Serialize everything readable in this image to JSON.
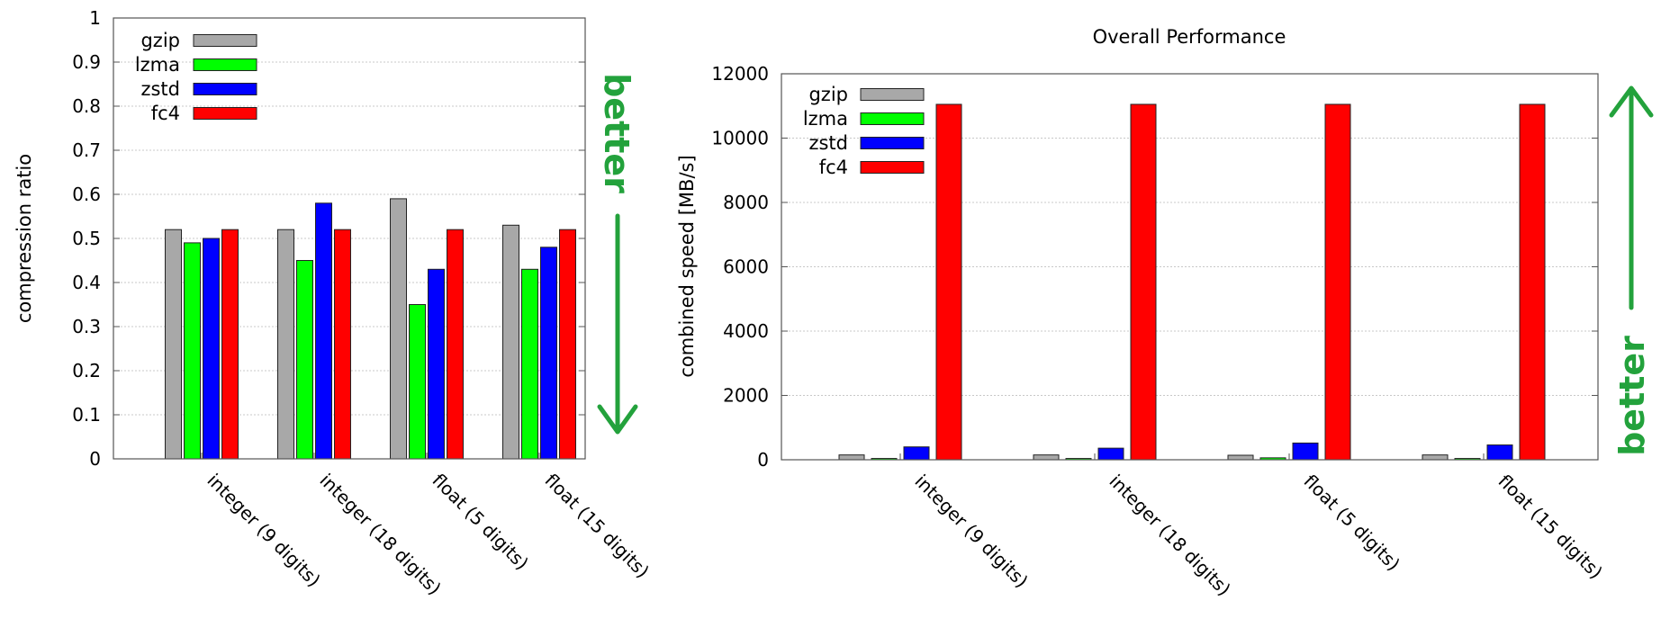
{
  "better_label": "better",
  "accent_color": "#23a23c",
  "chart_data": [
    {
      "type": "bar",
      "title": "",
      "xlabel": "",
      "ylabel": "compression ratio",
      "ylim": [
        0,
        1
      ],
      "yticks": [
        "0",
        "0.1",
        "0.2",
        "0.3",
        "0.4",
        "0.5",
        "0.6",
        "0.7",
        "0.8",
        "0.9",
        "1"
      ],
      "grid": true,
      "legend_position": "top-left",
      "better_direction": "down",
      "categories": [
        "integer (9 digits)",
        "integer (18 digits)",
        "float (5 digits)",
        "float (15 digits)"
      ],
      "series": [
        {
          "name": "gzip",
          "color": "#a8a8a8",
          "values": [
            0.52,
            0.52,
            0.59,
            0.53
          ]
        },
        {
          "name": "lzma",
          "color": "#00ff00",
          "values": [
            0.49,
            0.45,
            0.35,
            0.43
          ]
        },
        {
          "name": "zstd",
          "color": "#0000ff",
          "values": [
            0.5,
            0.58,
            0.43,
            0.48
          ]
        },
        {
          "name": "fc4",
          "color": "#ff0000",
          "values": [
            0.52,
            0.52,
            0.52,
            0.52
          ]
        }
      ]
    },
    {
      "type": "bar",
      "title": "Overall Performance",
      "xlabel": "",
      "ylabel": "combined speed [MB/s]",
      "ylim": [
        0,
        12000
      ],
      "yticks": [
        "0",
        "2000",
        "4000",
        "6000",
        "8000",
        "10000",
        "12000"
      ],
      "grid": true,
      "legend_position": "top-left",
      "better_direction": "up",
      "categories": [
        "integer (9 digits)",
        "integer (18 digits)",
        "float (5 digits)",
        "float (15 digits)"
      ],
      "series": [
        {
          "name": "gzip",
          "color": "#a8a8a8",
          "values": [
            150,
            150,
            140,
            150
          ]
        },
        {
          "name": "lzma",
          "color": "#00ff00",
          "values": [
            40,
            40,
            60,
            40
          ]
        },
        {
          "name": "zstd",
          "color": "#0000ff",
          "values": [
            400,
            360,
            520,
            460
          ]
        },
        {
          "name": "fc4",
          "color": "#ff0000",
          "values": [
            11050,
            11050,
            11050,
            11050
          ]
        }
      ]
    }
  ]
}
